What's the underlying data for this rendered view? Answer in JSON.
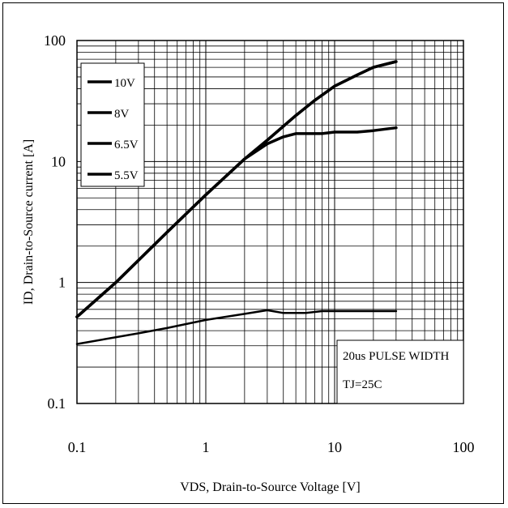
{
  "chart_data": {
    "type": "line",
    "xlabel": "VDS, Drain-to-Source Voltage [V]",
    "ylabel": "ID, Drain-to-Source current [A]",
    "x_scale": "log",
    "y_scale": "log",
    "xlim": [
      0.1,
      100
    ],
    "ylim": [
      0.1,
      100
    ],
    "x_ticks": [
      "0.1",
      "1",
      "10",
      "100"
    ],
    "y_ticks": [
      "0.1",
      "1",
      "10",
      "100"
    ],
    "grid": true,
    "legend_position": "top-left",
    "legend_entries": [
      "10V",
      "8V",
      "6.5V",
      "5.5V"
    ],
    "annotations": [
      "20us PULSE WIDTH",
      "TJ=25C"
    ],
    "series": [
      {
        "name": "10V",
        "x": [
          0.1,
          0.2,
          0.5,
          1,
          2,
          3,
          5,
          7,
          10,
          15,
          20,
          30
        ],
        "y": [
          0.52,
          1.0,
          2.6,
          5.3,
          10.5,
          15,
          24,
          32,
          42,
          52,
          60,
          67
        ]
      },
      {
        "name": "8V",
        "x": [
          0.1,
          0.2,
          0.5,
          1,
          2,
          3,
          5,
          7,
          10,
          15,
          20,
          30
        ],
        "y": [
          0.52,
          1.0,
          2.6,
          5.3,
          10.5,
          15,
          24,
          32,
          42,
          52,
          60,
          67
        ]
      },
      {
        "name": "6.5V",
        "x": [
          0.1,
          0.2,
          0.5,
          1,
          2,
          3,
          4,
          5,
          6,
          8,
          10,
          15,
          20,
          30
        ],
        "y": [
          0.52,
          1.0,
          2.6,
          5.3,
          10.5,
          14,
          16,
          17,
          17,
          17,
          17.5,
          17.5,
          18,
          19
        ]
      },
      {
        "name": "5.5V",
        "x": [
          0.1,
          0.3,
          0.5,
          1,
          2,
          3,
          4,
          6,
          8,
          10,
          20,
          30
        ],
        "y": [
          0.31,
          0.38,
          0.42,
          0.49,
          0.55,
          0.59,
          0.56,
          0.56,
          0.58,
          0.58,
          0.58,
          0.58
        ]
      }
    ]
  }
}
